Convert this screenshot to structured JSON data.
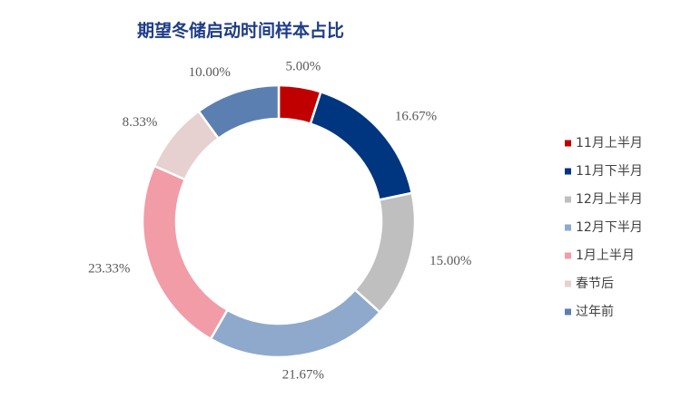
{
  "chart_data": {
    "type": "donut",
    "title": "期望冬储启动时间样本占比",
    "categories": [
      "11月上半月",
      "11月下半月",
      "12月上半月",
      "12月下半月",
      "1月上半月",
      "春节后",
      "过年前"
    ],
    "values": [
      5,
      16.67,
      15,
      21.67,
      23.33,
      8.33,
      10
    ],
    "value_labels": [
      "5.00%",
      "16.67%",
      "15.00%",
      "21.67%",
      "23.33%",
      "8.33%",
      "10.00%"
    ],
    "colors": [
      "#c00000",
      "#003580",
      "#bfbfbf",
      "#8ea9cc",
      "#f19ca6",
      "#e6d0d0",
      "#5b7fb0"
    ],
    "legend": "right"
  }
}
